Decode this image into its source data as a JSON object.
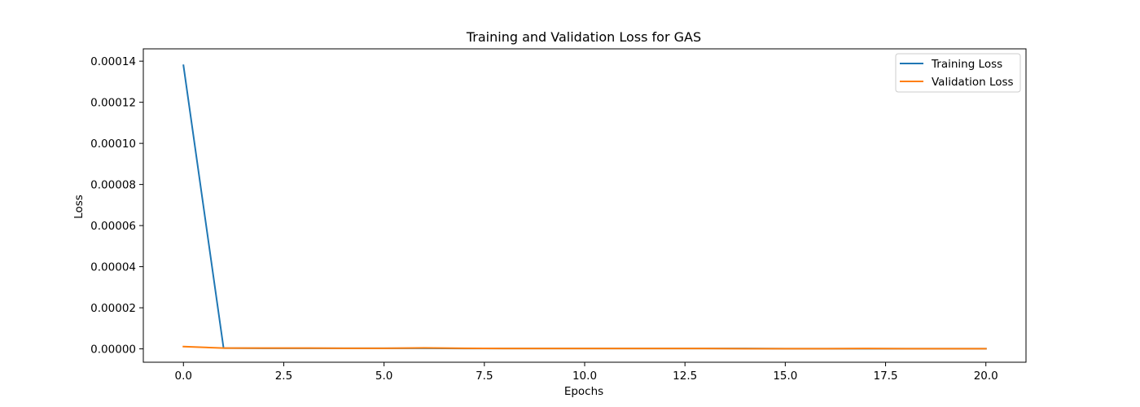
{
  "chart_data": {
    "type": "line",
    "title": "Training and Validation Loss for GAS",
    "xlabel": "Epochs",
    "ylabel": "Loss",
    "xlim": [
      -1,
      21
    ],
    "ylim": [
      -6.5e-06,
      0.000146
    ],
    "xticks": [
      0.0,
      2.5,
      5.0,
      7.5,
      10.0,
      12.5,
      15.0,
      17.5,
      20.0
    ],
    "xtick_labels": [
      "0.0",
      "2.5",
      "5.0",
      "7.5",
      "10.0",
      "12.5",
      "15.0",
      "17.5",
      "20.0"
    ],
    "yticks": [
      0.0,
      2e-05,
      4e-05,
      6e-05,
      8e-05,
      0.0001,
      0.00012,
      0.00014
    ],
    "ytick_labels": [
      "0.00000",
      "0.00002",
      "0.00004",
      "0.00006",
      "0.00008",
      "0.00010",
      "0.00012",
      "0.00014"
    ],
    "grid": false,
    "legend_position": "top-right",
    "x": [
      0,
      1,
      2,
      3,
      4,
      5,
      6,
      7,
      8,
      9,
      10,
      11,
      12,
      13,
      14,
      15,
      16,
      17,
      18,
      19,
      20
    ],
    "series": [
      {
        "name": "Training Loss",
        "color": "#1f77b4",
        "values": [
          0.000138,
          4e-07,
          3e-07,
          3e-07,
          3e-07,
          3e-07,
          3e-07,
          2e-07,
          2e-07,
          2e-07,
          2e-07,
          2e-07,
          2e-07,
          2e-07,
          2e-07,
          1e-07,
          1e-07,
          1e-07,
          1e-07,
          1e-07,
          1e-07
        ]
      },
      {
        "name": "Validation Loss",
        "color": "#ff7f0e",
        "values": [
          1.1e-06,
          4e-07,
          4e-07,
          4e-07,
          3e-07,
          3e-07,
          5e-07,
          3e-07,
          2e-07,
          2e-07,
          2e-07,
          2e-07,
          2e-07,
          2e-07,
          1e-07,
          1e-07,
          1e-07,
          2e-07,
          1e-07,
          1e-07,
          1e-07
        ]
      }
    ]
  }
}
